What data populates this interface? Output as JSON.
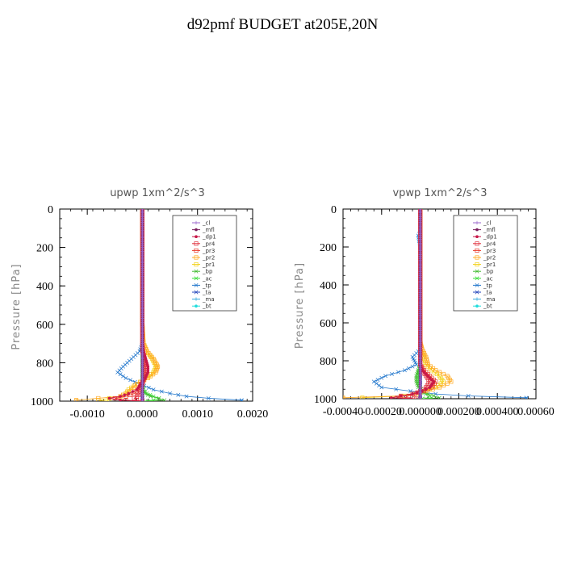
{
  "figure": {
    "title": "d92pmf  BUDGET at205E,20N"
  },
  "colors": {
    "_cl": "#9966cc",
    "_mfl": "#7a1f5e",
    "_dp1": "#c81848",
    "_pr4": "#e0303c",
    "_pr3": "#e83a2a",
    "_pr2": "#ffaa22",
    "_pr1": "#f2d21a",
    "_bp": "#44bb33",
    "_ac": "#33dd33",
    "_tp": "#2277cc",
    "_ta": "#2244bb",
    "_ma": "#33aadd",
    "_bt": "#22dddd"
  },
  "chart_data": [
    {
      "type": "line",
      "title": "upwp    1xm^2/s^3",
      "ylabel": "Pressure [hPa]",
      "xlim": [
        -0.0015,
        0.002
      ],
      "ylim": [
        1000,
        0
      ],
      "xticks": [
        -0.001,
        0.0,
        0.001,
        0.002
      ],
      "xtick_labels": [
        "-0.0010",
        "0.0000",
        "0.0010",
        "0.0020"
      ],
      "yticks": [
        0,
        200,
        400,
        600,
        800,
        1000
      ],
      "ytick_labels": [
        "0",
        "200",
        "400",
        "600",
        "800",
        "1000"
      ],
      "legend": [
        "_cl",
        "_mfl",
        "_dp1",
        "_pr4",
        "_pr3",
        "_pr2",
        "_pr1",
        "_bp",
        "_ac",
        "_tp",
        "_ta",
        "_ma",
        "_bt"
      ],
      "legend_position": "top-right",
      "pressure": [
        0,
        100,
        200,
        300,
        400,
        500,
        600,
        700,
        740,
        780,
        820,
        850,
        880,
        910,
        940,
        960,
        975,
        985,
        995,
        1000
      ],
      "series": [
        {
          "name": "_cl",
          "values": [
            0,
            0,
            0,
            0,
            0,
            0,
            0,
            0,
            0,
            0,
            0,
            0,
            0,
            0,
            0,
            0,
            0,
            0,
            0,
            0
          ]
        },
        {
          "name": "_mfl",
          "values": [
            0,
            0,
            0,
            0,
            0,
            0,
            0,
            0,
            0,
            0,
            0,
            0,
            0,
            0,
            0,
            0,
            0,
            0,
            0,
            0
          ]
        },
        {
          "name": "_dp1",
          "values": [
            0,
            0,
            0,
            0,
            0,
            0,
            0,
            0,
            2e-05,
            6e-05,
            0.0001,
            0.0001,
            5e-05,
            -3e-05,
            -0.0001,
            -0.00025,
            -0.0004,
            -0.0006,
            -0.0004,
            0
          ]
        },
        {
          "name": "_pr4",
          "values": [
            0,
            0,
            0,
            0,
            0,
            0,
            0,
            0,
            0,
            3e-05,
            6e-05,
            6e-05,
            3e-05,
            0,
            -2e-05,
            -5e-05,
            -0.0001,
            -0.00015,
            -0.0001,
            0
          ]
        },
        {
          "name": "_pr3",
          "values": [
            0,
            0,
            0,
            0,
            0,
            0,
            0,
            0,
            1e-05,
            4e-05,
            8e-05,
            8e-05,
            4e-05,
            -2e-05,
            -6e-05,
            -0.00015,
            -0.0003,
            -0.0005,
            -0.0003,
            0
          ]
        },
        {
          "name": "_pr2",
          "values": [
            0,
            0,
            0,
            0,
            0,
            0,
            0,
            2e-05,
            8e-05,
            0.0002,
            0.00028,
            0.00024,
            0.0001,
            -0.0001,
            -0.0002,
            -0.0003,
            -0.0004,
            -0.0008,
            -0.0012,
            -0.0012
          ]
        },
        {
          "name": "_pr1",
          "values": [
            0,
            0,
            0,
            0,
            0,
            0,
            0,
            2e-05,
            8e-05,
            0.00018,
            0.00025,
            0.0002,
            8e-05,
            -0.0001,
            -0.00025,
            -0.0003,
            -0.0004,
            -0.0006,
            -0.0008,
            -0.0006
          ]
        },
        {
          "name": "_bp",
          "values": [
            0,
            0,
            0,
            0,
            0,
            0,
            0,
            0,
            0,
            0,
            0,
            0,
            0,
            0,
            1e-05,
            5e-05,
            0.00015,
            0.0003,
            0.0004,
            0.0001
          ]
        },
        {
          "name": "_ac",
          "values": [
            0,
            0,
            0,
            0,
            0,
            0,
            0,
            0,
            0,
            0,
            0,
            0,
            0,
            0,
            2e-05,
            8e-05,
            0.0002,
            0.0003,
            0.0002,
            0
          ]
        },
        {
          "name": "_tp",
          "values": [
            0,
            0,
            0,
            0,
            0,
            0,
            0,
            0,
            -5e-05,
            -0.0002,
            -0.00035,
            -0.00045,
            -0.0003,
            -5e-05,
            0.0002,
            0.0005,
            0.0008,
            0.0012,
            0.0018,
            0.0018
          ]
        },
        {
          "name": "_ta",
          "values": [
            0,
            0,
            0,
            0,
            0,
            0,
            0,
            0,
            0,
            0,
            0,
            0,
            0,
            0,
            0,
            0,
            0,
            0,
            0,
            0
          ]
        },
        {
          "name": "_ma",
          "values": [
            0,
            0,
            0,
            0,
            0,
            0,
            0,
            0,
            0,
            0,
            0,
            0,
            0,
            0,
            0,
            0,
            0,
            0,
            0,
            0
          ]
        },
        {
          "name": "_bt",
          "values": [
            0,
            0,
            0,
            0,
            0,
            0,
            0,
            0,
            0,
            0,
            0,
            0,
            0,
            0,
            0,
            0,
            0,
            0,
            0,
            0
          ]
        }
      ]
    },
    {
      "type": "line",
      "title": "vpwp    1xm^2/s^3",
      "ylabel": "Pressure [hPa]",
      "xlim": [
        -0.0004,
        0.0006
      ],
      "ylim": [
        1000,
        0
      ],
      "xticks": [
        -0.0004,
        -0.0002,
        0.0,
        0.0002,
        0.0004,
        0.0006
      ],
      "xtick_labels": [
        "-0.00040",
        "-0.00020",
        "0.000000",
        "0.000200",
        "0.000400",
        "0.00060"
      ],
      "yticks": [
        0,
        200,
        400,
        600,
        800,
        1000
      ],
      "ytick_labels": [
        "0",
        "200",
        "400",
        "600",
        "800",
        "1000"
      ],
      "legend": [
        "_cl",
        "_mfl",
        "_dp1",
        "_pr4",
        "_pr3",
        "_pr2",
        "_pr1",
        "_bp",
        "_ac",
        "_tp",
        "_ta",
        "_ma",
        "_bt"
      ],
      "legend_position": "top-right",
      "pressure": [
        0,
        100,
        120,
        140,
        200,
        300,
        400,
        500,
        600,
        700,
        740,
        780,
        820,
        850,
        880,
        910,
        940,
        960,
        975,
        985,
        995,
        1000
      ],
      "series": [
        {
          "name": "_cl",
          "values": [
            0,
            0,
            0,
            0,
            0,
            0,
            0,
            0,
            0,
            0,
            0,
            0,
            0,
            0,
            0,
            0,
            0,
            0,
            0,
            0,
            0,
            0
          ]
        },
        {
          "name": "_mfl",
          "values": [
            0,
            0,
            0,
            0,
            0,
            0,
            0,
            0,
            0,
            0,
            0,
            0,
            0,
            0,
            0,
            0,
            0,
            0,
            0,
            0,
            0,
            0
          ]
        },
        {
          "name": "_dp1",
          "values": [
            0,
            0,
            0,
            0,
            0,
            0,
            0,
            0,
            0,
            0,
            0,
            0,
            0,
            1e-05,
            4e-05,
            7e-05,
            5e-05,
            1e-05,
            -4e-05,
            -0.0001,
            -0.00015,
            -5e-05
          ]
        },
        {
          "name": "_pr4",
          "values": [
            0,
            0,
            0,
            0,
            0,
            0,
            0,
            0,
            0,
            0,
            0,
            0,
            0,
            1e-05,
            3e-05,
            5e-05,
            3e-05,
            0,
            -3e-05,
            -6e-05,
            -8e-05,
            -2e-05
          ]
        },
        {
          "name": "_pr3",
          "values": [
            0,
            0,
            0,
            0,
            0,
            0,
            0,
            0,
            0,
            0,
            0,
            0,
            0,
            2e-05,
            5e-05,
            8e-05,
            6e-05,
            2e-05,
            -4e-05,
            -0.0001,
            -0.00012,
            -3e-05
          ]
        },
        {
          "name": "_pr2",
          "values": [
            0,
            0,
            0,
            0,
            0,
            0,
            0,
            0,
            0,
            0,
            1e-05,
            3e-05,
            4e-05,
            8e-05,
            0.00014,
            0.00016,
            0.0001,
            3e-05,
            -3e-05,
            -0.0001,
            -0.0004,
            -0.0004
          ]
        },
        {
          "name": "_pr1",
          "values": [
            0,
            0,
            0,
            0,
            0,
            0,
            0,
            0,
            0,
            0,
            0,
            2e-05,
            3e-05,
            6e-05,
            0.0001,
            0.00012,
            8e-05,
            2e-05,
            -2e-05,
            -8e-05,
            -0.0003,
            -0.0003
          ]
        },
        {
          "name": "_bp",
          "values": [
            0,
            0,
            0,
            0,
            0,
            0,
            0,
            0,
            0,
            0,
            0,
            0,
            0,
            -1e-05,
            -2e-05,
            -2e-05,
            -1e-05,
            1e-05,
            4e-05,
            7e-05,
            0.0001,
            3e-05
          ]
        },
        {
          "name": "_ac",
          "values": [
            0,
            0,
            0,
            0,
            0,
            0,
            0,
            0,
            0,
            0,
            0,
            0,
            0,
            -1e-05,
            -1e-05,
            -1e-05,
            0,
            1e-05,
            3e-05,
            5e-05,
            6e-05,
            1e-05
          ]
        },
        {
          "name": "_tp",
          "values": [
            0,
            0,
            0,
            -1e-05,
            0,
            0,
            0,
            0,
            0,
            0,
            0,
            -4e-05,
            -2e-05,
            -8e-05,
            -0.00018,
            -0.00024,
            -0.0002,
            -5e-05,
            8e-05,
            0.00025,
            0.00055,
            0.00055
          ]
        },
        {
          "name": "_ta",
          "values": [
            0,
            0,
            0,
            0,
            0,
            0,
            0,
            0,
            0,
            0,
            0,
            0,
            0,
            0,
            0,
            0,
            0,
            0,
            0,
            0,
            0,
            0
          ]
        },
        {
          "name": "_ma",
          "values": [
            0,
            0,
            0,
            0,
            0,
            0,
            0,
            0,
            0,
            0,
            0,
            0,
            0,
            0,
            0,
            0,
            0,
            0,
            0,
            0,
            0,
            0
          ]
        },
        {
          "name": "_bt",
          "values": [
            0,
            0,
            0,
            0,
            0,
            0,
            0,
            0,
            0,
            0,
            0,
            0,
            0,
            0,
            0,
            0,
            0,
            0,
            0,
            0,
            0,
            0
          ]
        }
      ]
    }
  ]
}
